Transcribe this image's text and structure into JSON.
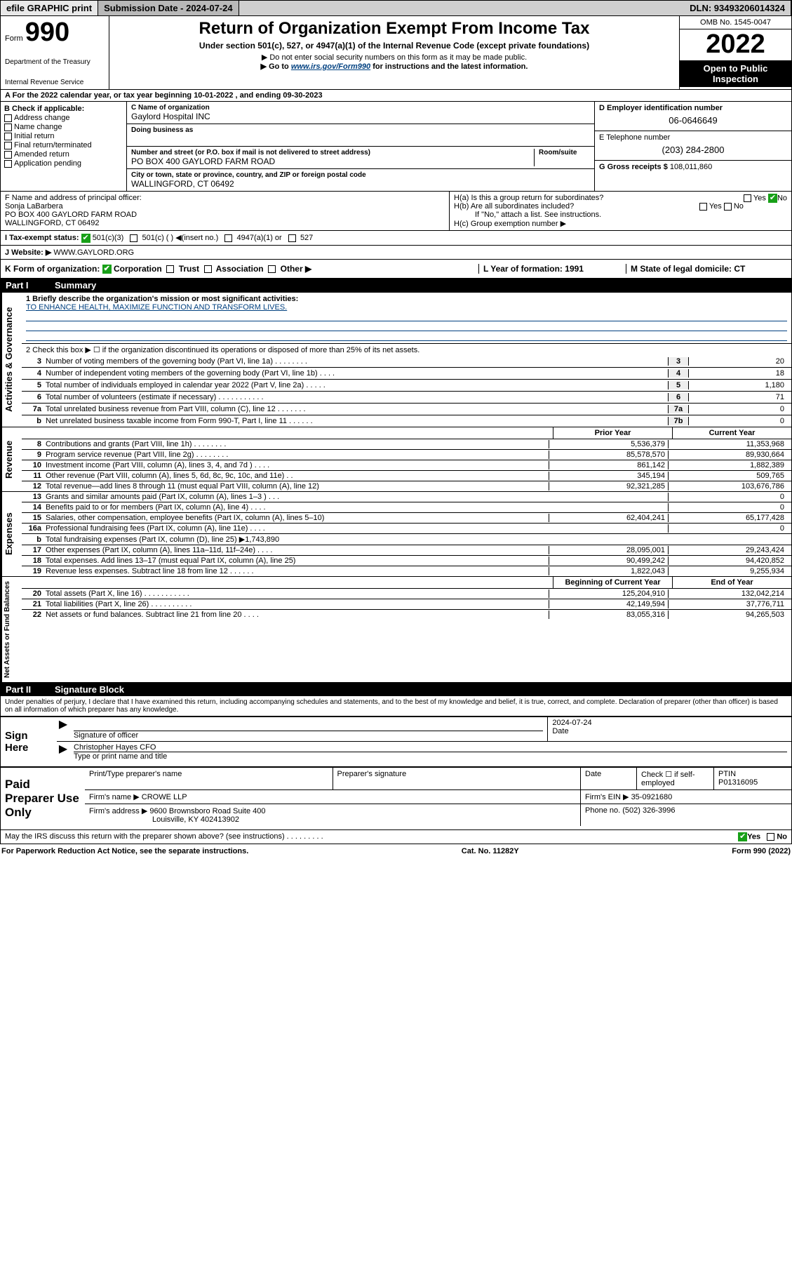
{
  "topbar": {
    "efile": "efile GRAPHIC print",
    "submission": "Submission Date - 2024-07-24",
    "dln": "DLN: 93493206014324"
  },
  "header": {
    "form_lbl": "Form",
    "form_num": "990",
    "dept": "Department of the Treasury",
    "irs": "Internal Revenue Service",
    "title": "Return of Organization Exempt From Income Tax",
    "sub": "Under section 501(c), 527, or 4947(a)(1) of the Internal Revenue Code (except private foundations)",
    "note1": "▶ Do not enter social security numbers on this form as it may be made public.",
    "note2_pre": "▶ Go to ",
    "note2_link": "www.irs.gov/Form990",
    "note2_post": " for instructions and the latest information.",
    "omb": "OMB No. 1545-0047",
    "year": "2022",
    "inspect": "Open to Public Inspection"
  },
  "section_a": "A For the 2022 calendar year, or tax year beginning 10-01-2022   , and ending 09-30-2023",
  "col_b": {
    "hdr": "B Check if applicable:",
    "items": [
      "Address change",
      "Name change",
      "Initial return",
      "Final return/terminated",
      "Amended return",
      "Application pending"
    ]
  },
  "col_c": {
    "name_lbl": "C Name of organization",
    "name": "Gaylord Hospital INC",
    "dba_lbl": "Doing business as",
    "addr_lbl": "Number and street (or P.O. box if mail is not delivered to street address)",
    "room_lbl": "Room/suite",
    "addr": "PO BOX 400 GAYLORD FARM ROAD",
    "city_lbl": "City or town, state or province, country, and ZIP or foreign postal code",
    "city": "WALLINGFORD, CT  06492"
  },
  "col_d": {
    "ein_lbl": "D Employer identification number",
    "ein": "06-0646649",
    "tel_lbl": "E Telephone number",
    "tel": "(203) 284-2800",
    "gross_lbl": "G Gross receipts $",
    "gross": "108,011,860"
  },
  "row_f": {
    "lbl": "F Name and address of principal officer:",
    "name": "Sonja LaBarbera",
    "addr1": "PO BOX 400 GAYLORD FARM ROAD",
    "addr2": "WALLINGFORD, CT  06492",
    "ha": "H(a)  Is this a group return for subordinates?",
    "hb": "H(b)  Are all subordinates included?",
    "hb_note": "If \"No,\" attach a list. See instructions.",
    "hc": "H(c)  Group exemption number ▶",
    "yes": "Yes",
    "no": "No"
  },
  "row_i": {
    "lbl": "I   Tax-exempt status:",
    "opts": [
      "501(c)(3)",
      "501(c) (  ) ◀(insert no.)",
      "4947(a)(1) or",
      "527"
    ]
  },
  "row_j": {
    "lbl": "J   Website: ▶",
    "val": "WWW.GAYLORD.ORG"
  },
  "row_k": {
    "lbl": "K Form of organization:",
    "opts": [
      "Corporation",
      "Trust",
      "Association",
      "Other ▶"
    ],
    "l_lbl": "L Year of formation:",
    "l_val": "1991",
    "m_lbl": "M State of legal domicile:",
    "m_val": "CT"
  },
  "part1": {
    "hdr": "Part I",
    "title": "Summary",
    "mission_lbl": "1   Briefly describe the organization's mission or most significant activities:",
    "mission": "TO ENHANCE HEALTH, MAXIMIZE FUNCTION AND TRANSFORM LIVES.",
    "line2": "2   Check this box ▶ ☐  if the organization discontinued its operations or disposed of more than 25% of its net assets.",
    "gov": [
      {
        "n": "3",
        "t": "Number of voting members of the governing body (Part VI, line 1a)  .   .   .   .   .   .   .   .",
        "b": "3",
        "v": "20"
      },
      {
        "n": "4",
        "t": "Number of independent voting members of the governing body (Part VI, line 1b)   .   .   .   .",
        "b": "4",
        "v": "18"
      },
      {
        "n": "5",
        "t": "Total number of individuals employed in calendar year 2022 (Part V, line 2a)   .   .   .   .   .",
        "b": "5",
        "v": "1,180"
      },
      {
        "n": "6",
        "t": "Total number of volunteers (estimate if necessary)   .   .   .   .   .   .   .   .   .   .   .",
        "b": "6",
        "v": "71"
      },
      {
        "n": "7a",
        "t": "Total unrelated business revenue from Part VIII, column (C), line 12   .   .   .   .   .   .   .",
        "b": "7a",
        "v": "0"
      },
      {
        "n": "b",
        "t": "Net unrelated business taxable income from Form 990-T, Part I, line 11   .   .   .   .   .   .",
        "b": "7b",
        "v": "0"
      }
    ],
    "prior": "Prior Year",
    "current": "Current Year",
    "revenue": [
      {
        "n": "8",
        "t": "Contributions and grants (Part VIII, line 1h)   .   .   .   .   .   .   .   .",
        "p": "5,536,379",
        "c": "11,353,968"
      },
      {
        "n": "9",
        "t": "Program service revenue (Part VIII, line 2g)   .   .   .   .   .   .   .   .",
        "p": "85,578,570",
        "c": "89,930,664"
      },
      {
        "n": "10",
        "t": "Investment income (Part VIII, column (A), lines 3, 4, and 7d )   .   .   .   .",
        "p": "861,142",
        "c": "1,882,389"
      },
      {
        "n": "11",
        "t": "Other revenue (Part VIII, column (A), lines 5, 6d, 8c, 9c, 10c, and 11e)   .   .",
        "p": "345,194",
        "c": "509,765"
      },
      {
        "n": "12",
        "t": "Total revenue—add lines 8 through 11 (must equal Part VIII, column (A), line 12)",
        "p": "92,321,285",
        "c": "103,676,786"
      }
    ],
    "expenses": [
      {
        "n": "13",
        "t": "Grants and similar amounts paid (Part IX, column (A), lines 1–3 )   .   .   .",
        "p": "",
        "c": "0"
      },
      {
        "n": "14",
        "t": "Benefits paid to or for members (Part IX, column (A), line 4)   .   .   .   .",
        "p": "",
        "c": "0"
      },
      {
        "n": "15",
        "t": "Salaries, other compensation, employee benefits (Part IX, column (A), lines 5–10)",
        "p": "62,404,241",
        "c": "65,177,428"
      },
      {
        "n": "16a",
        "t": "Professional fundraising fees (Part IX, column (A), line 11e)   .   .   .   .",
        "p": "",
        "c": "0"
      },
      {
        "n": "b",
        "t": "Total fundraising expenses (Part IX, column (D), line 25) ▶1,743,890",
        "p": "",
        "c": "",
        "shade": true
      },
      {
        "n": "17",
        "t": "Other expenses (Part IX, column (A), lines 11a–11d, 11f–24e)   .   .   .   .",
        "p": "28,095,001",
        "c": "29,243,424"
      },
      {
        "n": "18",
        "t": "Total expenses. Add lines 13–17 (must equal Part IX, column (A), line 25)",
        "p": "90,499,242",
        "c": "94,420,852"
      },
      {
        "n": "19",
        "t": "Revenue less expenses. Subtract line 18 from line 12   .   .   .   .   .   .",
        "p": "1,822,043",
        "c": "9,255,934"
      }
    ],
    "beg": "Beginning of Current Year",
    "end": "End of Year",
    "netassets": [
      {
        "n": "20",
        "t": "Total assets (Part X, line 16)   .   .   .   .   .   .   .   .   .   .   .",
        "p": "125,204,910",
        "c": "132,042,214"
      },
      {
        "n": "21",
        "t": "Total liabilities (Part X, line 26)   .   .   .   .   .   .   .   .   .   .",
        "p": "42,149,594",
        "c": "37,776,711"
      },
      {
        "n": "22",
        "t": "Net assets or fund balances. Subtract line 21 from line 20   .   .   .   .",
        "p": "83,055,316",
        "c": "94,265,503"
      }
    ],
    "side_gov": "Activities & Governance",
    "side_rev": "Revenue",
    "side_exp": "Expenses",
    "side_net": "Net Assets or Fund Balances"
  },
  "part2": {
    "hdr": "Part II",
    "title": "Signature Block",
    "declare": "Under penalties of perjury, I declare that I have examined this return, including accompanying schedules and statements, and to the best of my knowledge and belief, it is true, correct, and complete. Declaration of preparer (other than officer) is based on all information of which preparer has any knowledge.",
    "sign_here": "Sign Here",
    "sig_officer": "Signature of officer",
    "date": "Date",
    "date_val": "2024-07-24",
    "officer": "Christopher Hayes  CFO",
    "officer_lbl": "Type or print name and title",
    "paid": "Paid Preparer Use Only",
    "prep_name_lbl": "Print/Type preparer's name",
    "prep_sig_lbl": "Preparer's signature",
    "prep_date_lbl": "Date",
    "check_lbl": "Check ☐ if self-employed",
    "ptin_lbl": "PTIN",
    "ptin": "P01316095",
    "firm_name_lbl": "Firm's name   ▶",
    "firm_name": "CROWE LLP",
    "firm_ein_lbl": "Firm's EIN ▶",
    "firm_ein": "35-0921680",
    "firm_addr_lbl": "Firm's address ▶",
    "firm_addr": "9600 Brownsboro Road Suite 400",
    "firm_city": "Louisville, KY  402413902",
    "phone_lbl": "Phone no.",
    "phone": "(502) 326-3996",
    "may_irs": "May the IRS discuss this return with the preparer shown above? (see instructions)   .   .   .   .   .   .   .   .   .",
    "yes": "Yes",
    "no": "No"
  },
  "footer": {
    "paperwork": "For Paperwork Reduction Act Notice, see the separate instructions.",
    "cat": "Cat. No. 11282Y",
    "form": "Form 990 (2022)"
  }
}
